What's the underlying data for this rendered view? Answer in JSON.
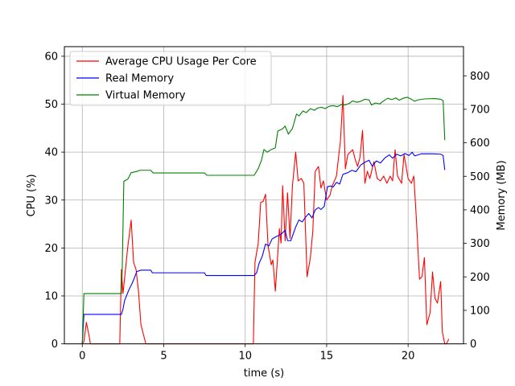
{
  "chart_data": {
    "type": "line",
    "title": "",
    "xlabel": "time (s)",
    "ylabel_left": "CPU (%)",
    "ylabel_right": "Memory (MB)",
    "xlim": [
      -1.1,
      23.4
    ],
    "ylim_left": [
      0,
      62
    ],
    "ylim_right": [
      0,
      887
    ],
    "xticks": [
      0,
      5,
      10,
      15,
      20
    ],
    "yticks_left": [
      0,
      10,
      20,
      30,
      40,
      50,
      60
    ],
    "yticks_right": [
      0,
      100,
      200,
      300,
      400,
      500,
      600,
      700,
      800
    ],
    "grid": true,
    "legend_position": "upper-left",
    "colors": {
      "cpu": "#ff0000",
      "real": "#0000ff",
      "virtual": "#008000",
      "grid": "#b0b0b0"
    },
    "series": [
      {
        "name": "Average CPU Usage Per Core",
        "axis": "left",
        "color": "#ff0000",
        "points": [
          [
            0.0,
            0
          ],
          [
            0.1,
            0.5
          ],
          [
            0.25,
            4.5
          ],
          [
            0.4,
            2
          ],
          [
            0.5,
            0
          ],
          [
            2.3,
            0
          ],
          [
            2.4,
            15.5
          ],
          [
            2.5,
            10.5
          ],
          [
            2.65,
            15.5
          ],
          [
            2.8,
            20.5
          ],
          [
            3.0,
            25.8
          ],
          [
            3.15,
            17
          ],
          [
            3.3,
            15.5
          ],
          [
            3.45,
            11
          ],
          [
            3.6,
            4
          ],
          [
            3.9,
            0
          ],
          [
            10.5,
            0
          ],
          [
            10.6,
            17
          ],
          [
            10.8,
            21
          ],
          [
            10.95,
            29.5
          ],
          [
            11.1,
            29.7
          ],
          [
            11.25,
            31.2
          ],
          [
            11.4,
            20.5
          ],
          [
            11.6,
            16.5
          ],
          [
            11.7,
            17.5
          ],
          [
            11.85,
            11
          ],
          [
            12.1,
            24
          ],
          [
            12.2,
            21
          ],
          [
            12.3,
            33
          ],
          [
            12.45,
            21.5
          ],
          [
            12.6,
            31.5
          ],
          [
            12.75,
            22
          ],
          [
            12.9,
            33
          ],
          [
            13.1,
            40
          ],
          [
            13.25,
            34
          ],
          [
            13.45,
            34.5
          ],
          [
            13.6,
            33.5
          ],
          [
            13.8,
            14
          ],
          [
            14.0,
            18
          ],
          [
            14.15,
            23.5
          ],
          [
            14.3,
            36
          ],
          [
            14.5,
            37
          ],
          [
            14.65,
            32.5
          ],
          [
            14.8,
            34
          ],
          [
            15.0,
            30
          ],
          [
            15.2,
            31
          ],
          [
            15.35,
            33
          ],
          [
            15.6,
            35
          ],
          [
            15.85,
            42.5
          ],
          [
            16.0,
            51.8
          ],
          [
            16.15,
            36.5
          ],
          [
            16.3,
            39.5
          ],
          [
            16.6,
            40.5
          ],
          [
            16.75,
            38.5
          ],
          [
            16.9,
            37
          ],
          [
            17.05,
            39
          ],
          [
            17.2,
            44.5
          ],
          [
            17.35,
            33.5
          ],
          [
            17.5,
            36
          ],
          [
            17.65,
            34.5
          ],
          [
            17.9,
            38
          ],
          [
            18.1,
            34.5
          ],
          [
            18.3,
            34
          ],
          [
            18.5,
            35
          ],
          [
            18.7,
            33.5
          ],
          [
            18.9,
            35
          ],
          [
            19.05,
            34
          ],
          [
            19.2,
            40.5
          ],
          [
            19.35,
            35
          ],
          [
            19.6,
            33.5
          ],
          [
            19.75,
            39.5
          ],
          [
            20.0,
            34.5
          ],
          [
            20.2,
            33.5
          ],
          [
            20.35,
            35
          ],
          [
            20.5,
            26.5
          ],
          [
            20.7,
            13.5
          ],
          [
            20.85,
            14
          ],
          [
            21.0,
            18
          ],
          [
            21.15,
            4
          ],
          [
            21.35,
            6.5
          ],
          [
            21.5,
            15
          ],
          [
            21.65,
            9.5
          ],
          [
            21.8,
            8.5
          ],
          [
            22.0,
            13
          ],
          [
            22.1,
            2.5
          ],
          [
            22.25,
            0
          ],
          [
            22.35,
            0
          ],
          [
            22.5,
            1
          ]
        ]
      },
      {
        "name": "Real Memory",
        "axis": "right",
        "color": "#0000ff",
        "points": [
          [
            0.0,
            0
          ],
          [
            0.1,
            88
          ],
          [
            2.4,
            88
          ],
          [
            2.5,
            104
          ],
          [
            2.6,
            130
          ],
          [
            2.85,
            160
          ],
          [
            3.1,
            185
          ],
          [
            3.35,
            216
          ],
          [
            3.6,
            220
          ],
          [
            4.2,
            220
          ],
          [
            4.3,
            212
          ],
          [
            7.5,
            212
          ],
          [
            7.6,
            204
          ],
          [
            10.55,
            204
          ],
          [
            10.7,
            212
          ],
          [
            10.85,
            240
          ],
          [
            11.05,
            262
          ],
          [
            11.25,
            298
          ],
          [
            11.45,
            292
          ],
          [
            11.65,
            313
          ],
          [
            11.9,
            320
          ],
          [
            12.2,
            327
          ],
          [
            12.45,
            339
          ],
          [
            12.6,
            308
          ],
          [
            12.8,
            308
          ],
          [
            13.1,
            349
          ],
          [
            13.3,
            370
          ],
          [
            13.5,
            364
          ],
          [
            13.7,
            378
          ],
          [
            13.9,
            389
          ],
          [
            14.1,
            376
          ],
          [
            14.3,
            400
          ],
          [
            14.5,
            407
          ],
          [
            14.65,
            401
          ],
          [
            14.85,
            410
          ],
          [
            15.05,
            469
          ],
          [
            15.25,
            471
          ],
          [
            15.4,
            468
          ],
          [
            15.6,
            482
          ],
          [
            15.8,
            477
          ],
          [
            16.0,
            506
          ],
          [
            16.3,
            511
          ],
          [
            16.55,
            518
          ],
          [
            16.8,
            514
          ],
          [
            17.1,
            534
          ],
          [
            17.35,
            542
          ],
          [
            17.6,
            548
          ],
          [
            17.8,
            530
          ],
          [
            18.05,
            546
          ],
          [
            18.3,
            540
          ],
          [
            18.6,
            556
          ],
          [
            18.85,
            564
          ],
          [
            19.05,
            554
          ],
          [
            19.3,
            566
          ],
          [
            19.55,
            561
          ],
          [
            19.8,
            568
          ],
          [
            20.05,
            562
          ],
          [
            20.25,
            572
          ],
          [
            20.4,
            561
          ],
          [
            20.8,
            567
          ],
          [
            21.5,
            567
          ],
          [
            22.0,
            566
          ],
          [
            22.15,
            562
          ],
          [
            22.25,
            519
          ]
        ]
      },
      {
        "name": "Virtual Memory",
        "axis": "right",
        "color": "#008000",
        "points": [
          [
            0.0,
            0
          ],
          [
            0.1,
            150
          ],
          [
            2.4,
            150
          ],
          [
            2.45,
            220
          ],
          [
            2.55,
            485
          ],
          [
            2.8,
            492
          ],
          [
            3.0,
            511
          ],
          [
            3.3,
            514
          ],
          [
            3.55,
            518
          ],
          [
            4.2,
            518
          ],
          [
            4.35,
            510
          ],
          [
            7.5,
            510
          ],
          [
            7.65,
            503
          ],
          [
            10.55,
            503
          ],
          [
            10.8,
            523
          ],
          [
            11.0,
            548
          ],
          [
            11.15,
            580
          ],
          [
            11.35,
            572
          ],
          [
            11.6,
            580
          ],
          [
            11.85,
            585
          ],
          [
            12.0,
            635
          ],
          [
            12.3,
            642
          ],
          [
            12.45,
            650
          ],
          [
            12.65,
            626
          ],
          [
            12.9,
            643
          ],
          [
            13.15,
            686
          ],
          [
            13.3,
            680
          ],
          [
            13.55,
            695
          ],
          [
            13.75,
            690
          ],
          [
            14.0,
            702
          ],
          [
            14.25,
            697
          ],
          [
            14.45,
            704
          ],
          [
            14.7,
            706
          ],
          [
            14.9,
            702
          ],
          [
            15.15,
            709
          ],
          [
            15.4,
            711
          ],
          [
            15.65,
            708
          ],
          [
            15.9,
            714
          ],
          [
            16.15,
            713
          ],
          [
            16.4,
            718
          ],
          [
            16.6,
            725
          ],
          [
            16.85,
            721
          ],
          [
            17.1,
            724
          ],
          [
            17.35,
            730
          ],
          [
            17.6,
            728
          ],
          [
            17.75,
            713
          ],
          [
            18.0,
            719
          ],
          [
            18.25,
            716
          ],
          [
            18.55,
            727
          ],
          [
            18.75,
            733
          ],
          [
            19.0,
            729
          ],
          [
            19.25,
            734
          ],
          [
            19.45,
            727
          ],
          [
            19.7,
            733
          ],
          [
            19.95,
            736
          ],
          [
            20.2,
            730
          ],
          [
            20.4,
            724
          ],
          [
            20.6,
            728
          ],
          [
            21.0,
            731
          ],
          [
            21.6,
            732
          ],
          [
            22.0,
            730
          ],
          [
            22.15,
            726
          ],
          [
            22.25,
            608
          ]
        ]
      }
    ]
  }
}
